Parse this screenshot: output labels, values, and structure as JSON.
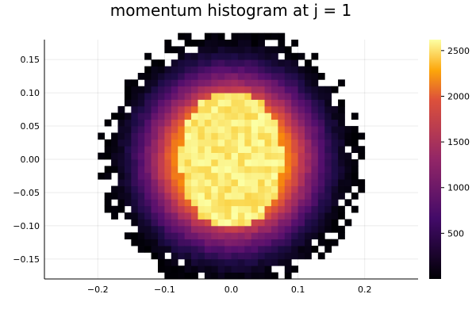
{
  "chart_data": {
    "type": "heatmap",
    "title": "momentum histogram at j = 1",
    "xlabel": "",
    "ylabel": "",
    "xlim": [
      -0.28,
      0.28
    ],
    "ylim": [
      -0.18,
      0.18
    ],
    "x_ticks": [
      -0.2,
      -0.1,
      0.0,
      0.1,
      0.2
    ],
    "x_tick_labels": [
      "−0.2",
      "−0.1",
      "0.0",
      "0.1",
      "0.2"
    ],
    "y_ticks": [
      0.15,
      0.1,
      0.05,
      0.0,
      -0.05,
      -0.1,
      -0.15
    ],
    "y_tick_labels": [
      "0.15",
      "0.10",
      "0.05",
      "0.00",
      "−0.05",
      "−0.10",
      "−0.15"
    ],
    "grid": true,
    "colormap": "inferno",
    "colorbar": {
      "min": 0,
      "max": 2620,
      "ticks": [
        500,
        1000,
        1500,
        2000,
        2500
      ],
      "tick_labels": [
        "500",
        "1000",
        "1500",
        "2000",
        "2500"
      ]
    },
    "distribution": {
      "center": [
        0.0,
        0.0
      ],
      "plateau_radius_x": 0.077,
      "plateau_radius_y": 0.105,
      "outer_radius": 0.19,
      "plateau_value": 2500,
      "bin_width": 0.01
    }
  }
}
